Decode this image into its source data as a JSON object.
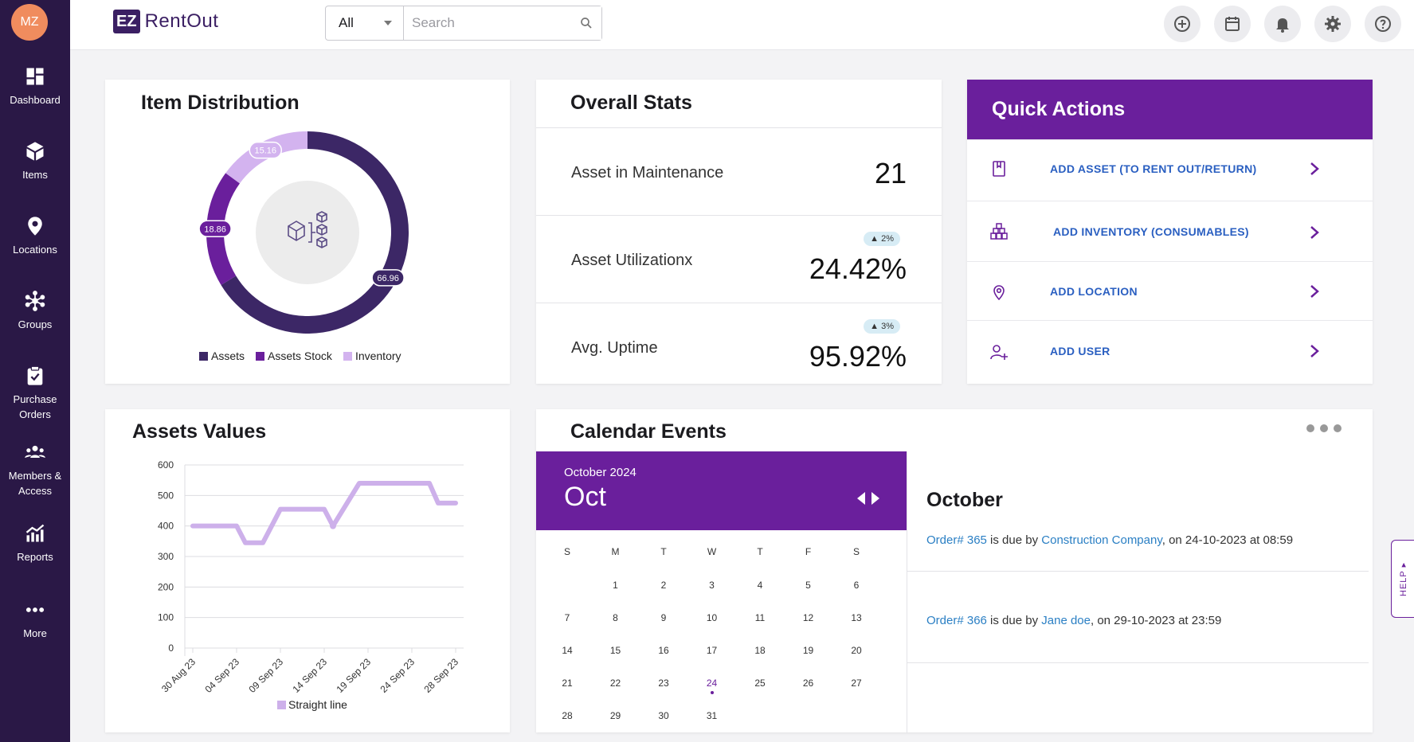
{
  "app": {
    "logo_box": "EZ",
    "logo_text": "RentOut",
    "user_initials": "MZ"
  },
  "search": {
    "scope": "All",
    "placeholder": "Search"
  },
  "sidebar": {
    "items": [
      {
        "label": "Dashboard",
        "icon": "dashboard-icon"
      },
      {
        "label": "Items",
        "icon": "box-icon"
      },
      {
        "label": "Locations",
        "icon": "location-pin-icon"
      },
      {
        "label": "Groups",
        "icon": "groups-icon"
      },
      {
        "label": "Purchase Orders",
        "icon": "clipboard-icon"
      },
      {
        "label": "Members & Access",
        "icon": "members-icon"
      },
      {
        "label": "Reports",
        "icon": "reports-icon"
      },
      {
        "label": "More",
        "icon": "more-icon"
      }
    ]
  },
  "item_distribution": {
    "title": "Item Distribution",
    "segments": [
      {
        "name": "Assets",
        "value": 66.96,
        "label": "66.96",
        "color": "#3c2766"
      },
      {
        "name": "Assets Stock",
        "value": 18.86,
        "label": "18.86",
        "color": "#6a1f9c"
      },
      {
        "name": "Inventory",
        "value": 15.16,
        "label": "15.16",
        "color": "#d3b3ef"
      }
    ],
    "legend": [
      "Assets",
      "Assets Stock",
      "Inventory"
    ]
  },
  "overall_stats": {
    "title": "Overall Stats",
    "rows": [
      {
        "label": "Asset in Maintenance",
        "value": "21",
        "badge": ""
      },
      {
        "label": "Asset Utilizationx",
        "value": "24.42%",
        "badge": "2%"
      },
      {
        "label": "Avg. Uptime",
        "value": "95.92%",
        "badge": "3%"
      }
    ]
  },
  "quick_actions": {
    "title": "Quick Actions",
    "items": [
      {
        "label": "ADD ASSET (TO RENT OUT/RETURN)",
        "icon": "asset-tag-icon"
      },
      {
        "label": "ADD INVENTORY (CONSUMABLES)",
        "icon": "inventory-boxes-icon"
      },
      {
        "label": "ADD LOCATION",
        "icon": "location-pin-icon"
      },
      {
        "label": "ADD USER",
        "icon": "add-user-icon"
      }
    ]
  },
  "assets_values": {
    "title": "Assets Values",
    "legend": "Straight line"
  },
  "chart_data": {
    "type": "line",
    "title": "Assets Values",
    "categories": [
      "30 Aug 23",
      "04 Sep 23",
      "09 Sep 23",
      "14 Sep 23",
      "19 Sep 23",
      "24 Sep 23",
      "28 Sep 23"
    ],
    "series": [
      {
        "name": "Straight line",
        "color": "#cdb0ea",
        "x": [
          0,
          1.0,
          1.2,
          1.6,
          2.0,
          2.2,
          3.0,
          3.2,
          3.8,
          4.0,
          4.6,
          5.0,
          5.4,
          5.6,
          6.0
        ],
        "y": [
          400,
          400,
          345,
          345,
          455,
          455,
          455,
          400,
          540,
          540,
          540,
          540,
          540,
          475,
          475
        ]
      }
    ],
    "yticks": [
      0,
      100,
      200,
      300,
      400,
      500,
      600
    ],
    "ylim": [
      0,
      600
    ],
    "xlabel": "",
    "ylabel": ""
  },
  "calendar": {
    "title": "Calendar Events",
    "subtitle": "October 2024",
    "month_short": "Oct",
    "dow": [
      "S",
      "M",
      "T",
      "W",
      "T",
      "F",
      "S"
    ],
    "first_weekday": 1,
    "days": 31,
    "today": 24,
    "events_month": "October",
    "events": [
      {
        "order": "Order# 365",
        "mid": " is due by ",
        "party": "Construction Company",
        "tail": ", on 24-10-2023 at 08:59"
      },
      {
        "order": "Order# 366",
        "mid": " is due by ",
        "party": "Jane doe",
        "tail": ", on 29-10-2023 at 23:59"
      }
    ]
  },
  "help": {
    "label": "HELP ▸"
  }
}
